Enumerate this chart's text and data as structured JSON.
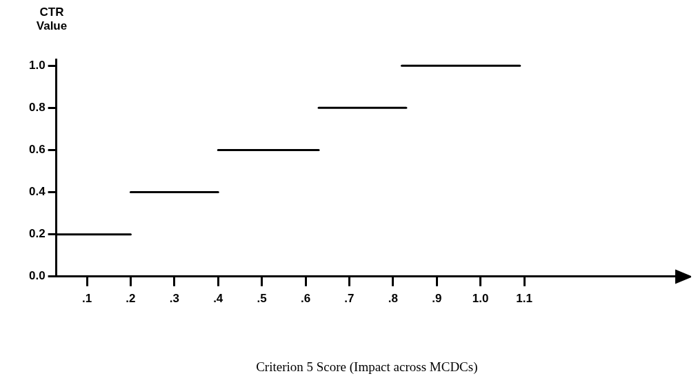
{
  "chart_data": {
    "type": "line",
    "xlabel": "Criterion 5 Score (Impact across MCDCs)",
    "ylabel": "CTR Value",
    "series": [
      {
        "type": "line",
        "color": "#000000",
        "x": [
          0.03,
          0.2
        ],
        "values": [
          0.2,
          0.2
        ]
      },
      {
        "type": "line",
        "color": "#000000",
        "x": [
          0.2,
          0.4
        ],
        "values": [
          0.4,
          0.4
        ]
      },
      {
        "type": "line",
        "color": "#000000",
        "x": [
          0.4,
          0.63
        ],
        "values": [
          0.6,
          0.6
        ]
      },
      {
        "type": "line",
        "color": "#000000",
        "x": [
          0.63,
          0.83
        ],
        "values": [
          0.8,
          0.8
        ]
      },
      {
        "type": "line",
        "color": "#000000",
        "x": [
          0.82,
          1.09
        ],
        "values": [
          1.0,
          1.0
        ]
      }
    ],
    "xlim": [
      0.03,
      1.45
    ],
    "xticks": [
      {
        "value": 0.1,
        "label": ".1"
      },
      {
        "value": 0.2,
        "label": ".2"
      },
      {
        "value": 0.3,
        "label": ".3"
      },
      {
        "value": 0.4,
        "label": ".4"
      },
      {
        "value": 0.5,
        "label": ".5"
      },
      {
        "value": 0.6,
        "label": ".6"
      },
      {
        "value": 0.7,
        "label": ".7"
      },
      {
        "value": 0.8,
        "label": ".8"
      },
      {
        "value": 0.9,
        "label": ".9"
      },
      {
        "value": 1.0,
        "label": "1.0"
      },
      1.1
    ],
    "ylim": [
      0,
      1.03
    ],
    "yticks": [
      {
        "value": 0,
        "label": "0.0"
      },
      {
        "value": 0.2,
        "label": "0.2"
      },
      {
        "value": 0.4,
        "label": "0.4"
      },
      {
        "value": 0.6,
        "label": "0.6"
      },
      {
        "value": 0.8,
        "label": "0.8"
      },
      {
        "value": 1.0,
        "label": "1.0"
      }
    ],
    "grid": false,
    "legend": false,
    "marker": "none",
    "line_style": "solid"
  }
}
